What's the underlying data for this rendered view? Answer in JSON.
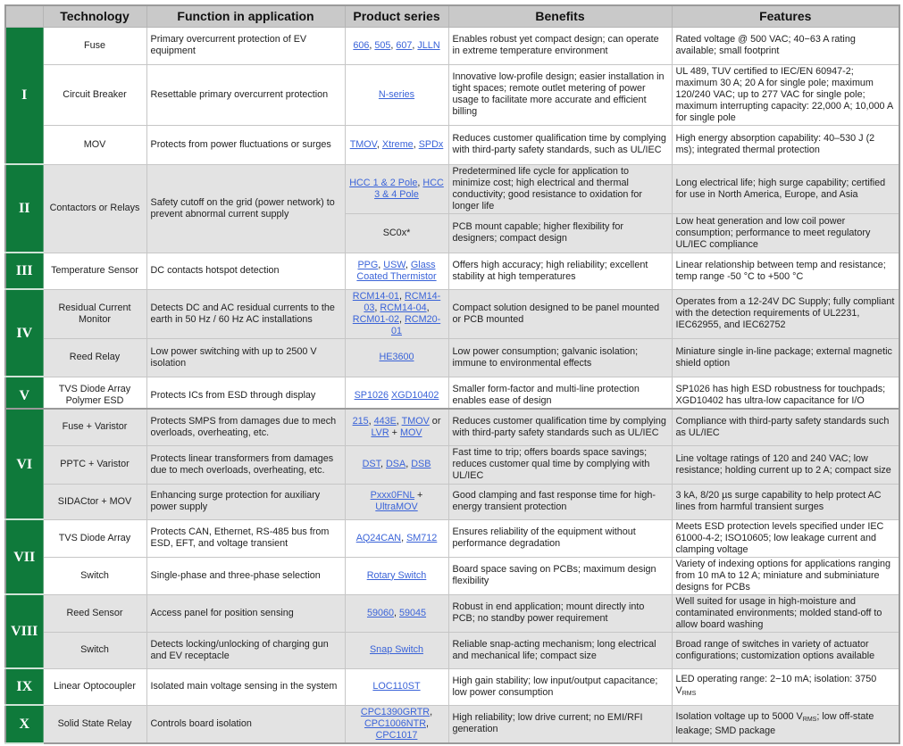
{
  "header": {
    "blank": "",
    "technology": "Technology",
    "function": "Function in application",
    "products": "Product series",
    "benefits": "Benefits",
    "features": "Features"
  },
  "colors": {
    "group_green": "#0f7a3b",
    "link_blue": "#3a63d8",
    "header_gray": "#c9c9c9",
    "row_gray": "#e3e3e3"
  },
  "tables": [
    {
      "groups": [
        {
          "numeral": "I",
          "shade": "white",
          "rows": [
            {
              "technology": "Fuse",
              "function": "Primary overcurrent protection of EV equipment",
              "products": [
                {
                  "text": "606",
                  "link": true
                },
                {
                  "text": ", "
                },
                {
                  "text": "505",
                  "link": true
                },
                {
                  "text": ", "
                },
                {
                  "text": "607",
                  "link": true
                },
                {
                  "text": ", "
                },
                {
                  "text": "JLLN",
                  "link": true
                }
              ],
              "benefits": "Enables robust yet compact design; can operate in extreme temperature environment",
              "features": "Rated voltage @ 500 VAC; 40−63 A rating available; small footprint"
            },
            {
              "technology": "Circuit Breaker",
              "function": "Resettable primary overcurrent protection",
              "products": [
                {
                  "text": "N-series",
                  "link": true
                }
              ],
              "benefits": "Innovative low-profile design; easier installation in tight spaces; remote outlet metering of power usage to facilitate more accurate and efficient billing",
              "features": "UL 489, TUV certified to IEC/EN 60947-2; maximum 30 A; 20 A for single pole; maximum 120/240 VAC; up to 277 VAC for single pole; maximum interrupting capacity: 22,000 A; 10,000 A for single pole"
            },
            {
              "technology": "MOV",
              "function": "Protects from power fluctuations or surges",
              "products": [
                {
                  "text": "TMOV",
                  "link": true
                },
                {
                  "text": ", "
                },
                {
                  "text": "Xtreme",
                  "link": true
                },
                {
                  "text": ", "
                },
                {
                  "text": "SPDx",
                  "link": true
                }
              ],
              "benefits": "Reduces customer qualification time by complying with third-party safety standards, such as UL/IEC",
              "features": "High energy absorption capability: 40–530 J (2 ms); integrated thermal protection"
            }
          ]
        },
        {
          "numeral": "II",
          "shade": "gray",
          "rows": [
            {
              "technology": "Contactors or Relays",
              "function": "Safety cutoff on the grid (power network) to prevent abnormal current supply",
              "variants": [
                {
                  "products": [
                    {
                      "text": "HCC 1 & 2 Pole",
                      "link": true
                    },
                    {
                      "text": ", "
                    },
                    {
                      "text": "HCC 3 & 4 Pole",
                      "link": true
                    }
                  ],
                  "benefits": "Predetermined life cycle for application to minimize cost; high electrical and thermal conductivity; good resistance to oxidation for longer life",
                  "features": "Long electrical life; high surge capability; certified for use in North America, Europe, and Asia"
                },
                {
                  "products": [
                    {
                      "text": "SC0x*"
                    }
                  ],
                  "benefits": "PCB mount capable; higher flexibility for designers; compact design",
                  "features": "Low heat generation and low coil power consumption; performance to meet regulatory UL/IEC compliance"
                }
              ]
            }
          ]
        },
        {
          "numeral": "III",
          "shade": "white",
          "rows": [
            {
              "technology": "Temperature Sensor",
              "function": "DC contacts hotspot detection",
              "products": [
                {
                  "text": "PPG",
                  "link": true
                },
                {
                  "text": ", "
                },
                {
                  "text": "USW",
                  "link": true
                },
                {
                  "text": ", "
                },
                {
                  "text": "Glass Coated Thermistor",
                  "link": true
                }
              ],
              "benefits": "Offers high accuracy; high reliability; excellent stability at high temperatures",
              "features": "Linear relationship between temp and resistance; temp range -50 °C to +500 °C"
            }
          ]
        },
        {
          "numeral": "IV",
          "shade": "gray",
          "rows": [
            {
              "technology": "Residual Current Monitor",
              "function": "Detects DC and AC residual currents to the earth in 50 Hz / 60 Hz AC installations",
              "products": [
                {
                  "text": "RCM14-01",
                  "link": true
                },
                {
                  "text": ", "
                },
                {
                  "text": "RCM14-03",
                  "link": true
                },
                {
                  "text": ", "
                },
                {
                  "text": "RCM14-04",
                  "link": true
                },
                {
                  "text": ", "
                },
                {
                  "text": "RCM01-02",
                  "link": true
                },
                {
                  "text": ", "
                },
                {
                  "text": "RCM20-01",
                  "link": true
                }
              ],
              "benefits": "Compact solution designed to be panel mounted or PCB mounted",
              "features": "Operates from a 12-24V DC Supply; fully compliant with the detection requirements of UL2231, IEC62955, and IEC62752"
            },
            {
              "technology": "Reed Relay",
              "function": "Low power switching with up to 2500 V isolation",
              "products": [
                {
                  "text": "HE3600",
                  "link": true
                }
              ],
              "benefits": "Low power consumption; galvanic isolation; immune to environmental effects",
              "features": "Miniature single in-line package; external magnetic shield option"
            }
          ]
        },
        {
          "numeral": "V",
          "shade": "white",
          "rows": [
            {
              "technology": "TVS Diode Array Polymer ESD",
              "function": "Protects ICs from ESD through display",
              "products": [
                {
                  "text": "SP1026",
                  "link": true
                },
                {
                  "text": " "
                },
                {
                  "text": "XGD10402",
                  "link": true
                }
              ],
              "benefits": "Smaller form-factor and multi-line protection enables ease of design",
              "features": "SP1026 has high ESD robustness for touchpads; XGD10402 has ultra-low capacitance for I/O"
            }
          ]
        }
      ]
    },
    {
      "groups": [
        {
          "numeral": "VI",
          "shade": "gray",
          "rows": [
            {
              "technology": "Fuse + Varistor",
              "function": "Protects SMPS from damages due to mech overloads, overheating, etc.",
              "products": [
                {
                  "text": "215",
                  "link": true
                },
                {
                  "text": ", "
                },
                {
                  "text": "443E",
                  "link": true
                },
                {
                  "text": ", "
                },
                {
                  "text": "TMOV",
                  "link": true
                },
                {
                  "text": " or "
                },
                {
                  "text": "LVR",
                  "link": true
                },
                {
                  "text": " + "
                },
                {
                  "text": "MOV",
                  "link": true
                }
              ],
              "benefits": "Reduces customer qualification time by complying with third-party safety standards such as UL/IEC",
              "features": "Compliance with third-party safety standards such as UL/IEC"
            },
            {
              "technology": "PPTC + Varistor",
              "function": "Protects linear transformers from damages due to mech overloads, overheating, etc.",
              "products": [
                {
                  "text": "DST",
                  "link": true
                },
                {
                  "text": ", "
                },
                {
                  "text": "DSA",
                  "link": true
                },
                {
                  "text": ", "
                },
                {
                  "text": "DSB",
                  "link": true
                }
              ],
              "benefits": "Fast time to trip; offers boards space savings; reduces customer qual time by complying with UL/IEC",
              "features": "Line voltage ratings of 120 and 240 VAC; low resistance; holding current up to 2 A; compact size"
            },
            {
              "technology": "SIDACtor + MOV",
              "function": "Enhancing surge protection for auxiliary power supply",
              "products": [
                {
                  "text": "Pxxx0FNL",
                  "link": true
                },
                {
                  "text": " + "
                },
                {
                  "text": "UltraMOV",
                  "link": true
                }
              ],
              "benefits": "Good clamping and fast response time for high-energy transient protection",
              "features": "3 kA, 8/20 µs surge capability to help protect AC lines from harmful transient surges"
            }
          ]
        },
        {
          "numeral": "VII",
          "shade": "white",
          "rows": [
            {
              "technology": "TVS Diode Array",
              "function": "Protects CAN, Ethernet, RS-485 bus from ESD, EFT, and voltage transient",
              "products": [
                {
                  "text": "AQ24CAN",
                  "link": true
                },
                {
                  "text": ", "
                },
                {
                  "text": "SM712",
                  "link": true
                }
              ],
              "benefits": "Ensures reliability of the equipment without performance degradation",
              "features": "Meets ESD protection levels specified under IEC 61000-4-2; ISO10605; low leakage current and clamping voltage"
            },
            {
              "technology": "Switch",
              "function": "Single-phase and three-phase selection",
              "products": [
                {
                  "text": "Rotary Switch",
                  "link": true
                }
              ],
              "benefits": "Board space saving on PCBs; maximum design flexibility",
              "features": "Variety of indexing options for applications ranging from 10 mA to 12 A; miniature and subminiature designs for PCBs"
            }
          ]
        },
        {
          "numeral": "VIII",
          "shade": "gray",
          "rows": [
            {
              "technology": "Reed Sensor",
              "function": "Access panel for position sensing",
              "products": [
                {
                  "text": "59060",
                  "link": true
                },
                {
                  "text": ", "
                },
                {
                  "text": "59045",
                  "link": true
                }
              ],
              "benefits": "Robust in end application; mount directly into PCB; no standby power requirement",
              "features": "Well suited for usage in high-moisture and contaminated environments; molded stand-off to allow board washing"
            },
            {
              "technology": "Switch",
              "function": "Detects locking/unlocking of charging gun and EV receptacle",
              "products": [
                {
                  "text": "Snap Switch",
                  "link": true
                }
              ],
              "benefits": "Reliable snap-acting mechanism; long electrical and mechanical life; compact size",
              "features": "Broad range of switches in variety of actuator configurations; customization options available"
            }
          ]
        },
        {
          "numeral": "IX",
          "shade": "white",
          "rows": [
            {
              "technology": "Linear Optocoupler",
              "function": "Isolated main voltage sensing in the system",
              "products": [
                {
                  "text": "LOC110ST",
                  "link": true
                }
              ],
              "benefits": "High gain stability; low input/output capacitance; low power consumption",
              "features": [
                {
                  "text": "LED operating range: 2−10 mA; isolation: 3750 V"
                },
                {
                  "text": "RMS",
                  "sub": true
                }
              ]
            }
          ]
        },
        {
          "numeral": "X",
          "shade": "gray",
          "rows": [
            {
              "technology": "Solid State Relay",
              "function": "Controls board isolation",
              "products": [
                {
                  "text": "CPC1390GRTR",
                  "link": true
                },
                {
                  "text": ", "
                },
                {
                  "text": "CPC1006NTR",
                  "link": true
                },
                {
                  "text": ", "
                },
                {
                  "text": "CPC1017",
                  "link": true
                }
              ],
              "benefits": "High reliability; low drive current; no EMI/RFI generation",
              "features": [
                {
                  "text": "Isolation voltage up to 5000 V"
                },
                {
                  "text": "RMS",
                  "sub": true
                },
                {
                  "text": "; low off-state leakage; SMD package"
                }
              ]
            }
          ]
        }
      ]
    }
  ]
}
